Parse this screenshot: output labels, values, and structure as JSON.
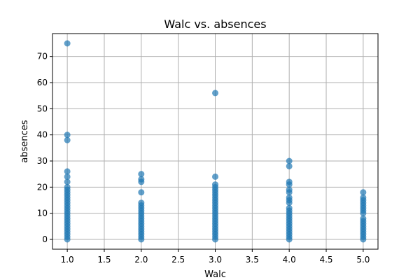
{
  "chart_data": {
    "type": "scatter",
    "title": "Walc vs. absences",
    "xlabel": "Walc",
    "ylabel": "absences",
    "xlim": [
      0.8,
      5.2
    ],
    "ylim": [
      -3.75,
      78.75
    ],
    "grid": true,
    "color": "#1f77b4",
    "x_ticks": [
      "1.0",
      "1.5",
      "2.0",
      "2.5",
      "3.0",
      "3.5",
      "4.0",
      "4.5",
      "5.0"
    ],
    "y_ticks": [
      "0",
      "10",
      "20",
      "30",
      "40",
      "50",
      "60",
      "70"
    ],
    "series": [
      {
        "x": [
          1,
          1,
          1,
          1,
          1,
          1,
          1,
          1,
          1,
          1,
          1,
          1,
          1,
          1,
          1,
          1,
          1,
          1,
          1,
          1,
          1,
          1,
          1,
          1,
          1,
          1,
          1,
          2,
          2,
          2,
          2,
          2,
          2,
          2,
          2,
          2,
          2,
          2,
          2,
          2,
          2,
          2,
          2,
          2,
          2,
          2,
          3,
          3,
          3,
          3,
          3,
          3,
          3,
          3,
          3,
          3,
          3,
          3,
          3,
          3,
          3,
          3,
          3,
          3,
          3,
          3,
          3,
          3,
          3,
          3,
          4,
          4,
          4,
          4,
          4,
          4,
          4,
          4,
          4,
          4,
          4,
          4,
          4,
          4,
          4,
          4,
          4,
          4,
          4,
          4,
          4,
          4,
          5,
          5,
          5,
          5,
          5,
          5,
          5,
          5,
          5,
          5,
          5,
          5,
          5,
          5,
          5,
          5,
          5
        ],
        "y": [
          0,
          1,
          2,
          3,
          4,
          5,
          6,
          7,
          8,
          9,
          10,
          11,
          12,
          13,
          14,
          15,
          16,
          18,
          19,
          20,
          26,
          38,
          40,
          75,
          17,
          22,
          24,
          0,
          1,
          2,
          3,
          4,
          5,
          6,
          7,
          8,
          9,
          10,
          11,
          12,
          13,
          14,
          18,
          22,
          23,
          25,
          0,
          1,
          2,
          3,
          4,
          5,
          6,
          7,
          8,
          9,
          10,
          11,
          12,
          13,
          14,
          15,
          16,
          17,
          18,
          21,
          24,
          56,
          19,
          20,
          0,
          1,
          2,
          3,
          4,
          5,
          6,
          7,
          8,
          9,
          10,
          11,
          12,
          14,
          15,
          16,
          18,
          19,
          21,
          22,
          28,
          30,
          0,
          1,
          2,
          3,
          4,
          5,
          6,
          7,
          8,
          10,
          11,
          12,
          13,
          14,
          15,
          16,
          18
        ]
      }
    ]
  }
}
